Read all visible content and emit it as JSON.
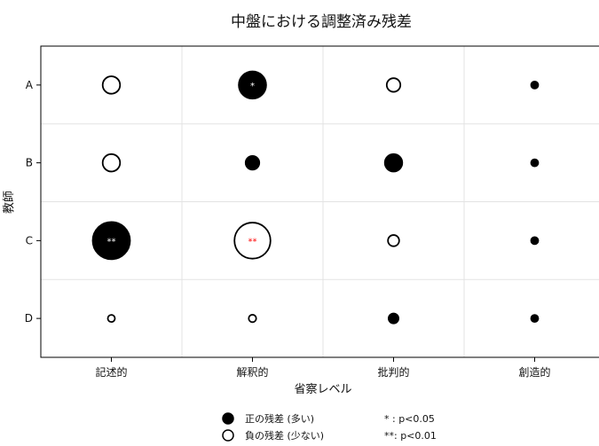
{
  "chart_data": {
    "type": "bubble",
    "title": "中盤における調整済み残差",
    "xlabel": "省察レベル",
    "ylabel": "教師",
    "categories_x": [
      "記述的",
      "解釈的",
      "批判的",
      "創造的"
    ],
    "categories_y": [
      "A",
      "B",
      "C",
      "D"
    ],
    "grid": true,
    "cells": [
      {
        "y": "A",
        "x": "記述的",
        "residual": -1.4,
        "sig": ""
      },
      {
        "y": "A",
        "x": "解釈的",
        "residual": 2.2,
        "sig": "*"
      },
      {
        "y": "A",
        "x": "批判的",
        "residual": -1.1,
        "sig": ""
      },
      {
        "y": "A",
        "x": "創造的",
        "residual": 0.4,
        "sig": ""
      },
      {
        "y": "B",
        "x": "記述的",
        "residual": -1.4,
        "sig": ""
      },
      {
        "y": "B",
        "x": "解釈的",
        "residual": 1.1,
        "sig": ""
      },
      {
        "y": "B",
        "x": "批判的",
        "residual": 1.4,
        "sig": ""
      },
      {
        "y": "B",
        "x": "創造的",
        "residual": 0.4,
        "sig": ""
      },
      {
        "y": "C",
        "x": "記述的",
        "residual": 3.0,
        "sig": "**"
      },
      {
        "y": "C",
        "x": "解釈的",
        "residual": -2.9,
        "sig": "**"
      },
      {
        "y": "C",
        "x": "批判的",
        "residual": -0.9,
        "sig": ""
      },
      {
        "y": "C",
        "x": "創造的",
        "residual": 0.4,
        "sig": ""
      },
      {
        "y": "D",
        "x": "記述的",
        "residual": -0.5,
        "sig": ""
      },
      {
        "y": "D",
        "x": "解釈的",
        "residual": -0.6,
        "sig": ""
      },
      {
        "y": "D",
        "x": "批判的",
        "residual": 0.8,
        "sig": ""
      },
      {
        "y": "D",
        "x": "創造的",
        "residual": 0.4,
        "sig": ""
      }
    ],
    "legend": {
      "position": "bottom-center",
      "positive": "正の残差 (多い)",
      "negative": "負の残差 (少ない)",
      "sig1": "* : p<0.05",
      "sig2": "**: p<0.01"
    },
    "colors": {
      "positive": "#000000",
      "negative": "#ffffff",
      "outline": "#000000",
      "sig_on_dark": "#ffffff",
      "sig_on_light": "#ff0000"
    }
  }
}
